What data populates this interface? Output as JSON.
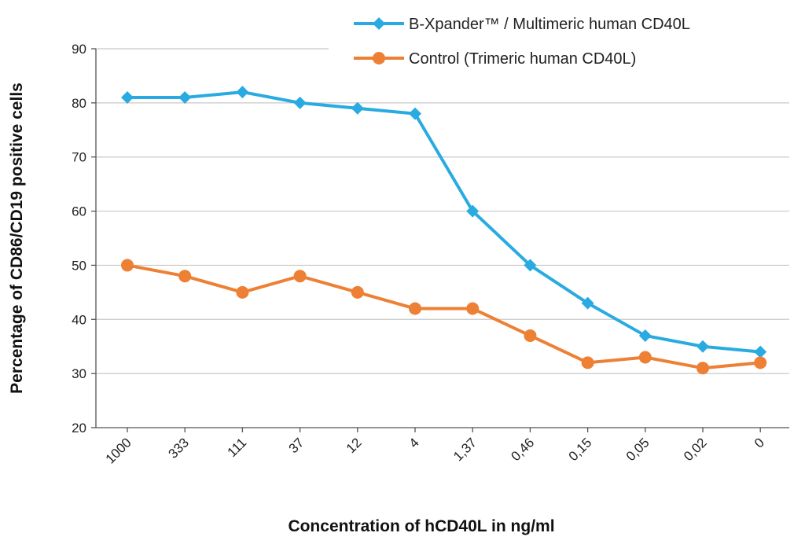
{
  "chart_data": {
    "type": "line",
    "title": "",
    "xlabel": "Concentration of hCD40L in ng/ml",
    "ylabel": "Percentage of CD86/CD19 positive cells",
    "categories": [
      "1000",
      "333",
      "111",
      "37",
      "12",
      "4",
      "1,37",
      "0,46",
      "0,15",
      "0,05",
      "0,02",
      "0"
    ],
    "ylim": [
      20,
      90
    ],
    "yticks": [
      20,
      30,
      40,
      50,
      60,
      70,
      80,
      90
    ],
    "grid": "horizontal",
    "legend_position": "top-right",
    "series": [
      {
        "name": "B-Xpander™ / Multimeric human CD40L",
        "color": "#29abe2",
        "marker": "diamond",
        "values": [
          81,
          81,
          82,
          80,
          79,
          78,
          60,
          50,
          43,
          37,
          35,
          34
        ]
      },
      {
        "name": "Control (Trimeric human CD40L)",
        "color": "#ed8034",
        "marker": "circle",
        "values": [
          50,
          48,
          45,
          48,
          45,
          42,
          42,
          37,
          32,
          33,
          31,
          32
        ]
      }
    ]
  }
}
